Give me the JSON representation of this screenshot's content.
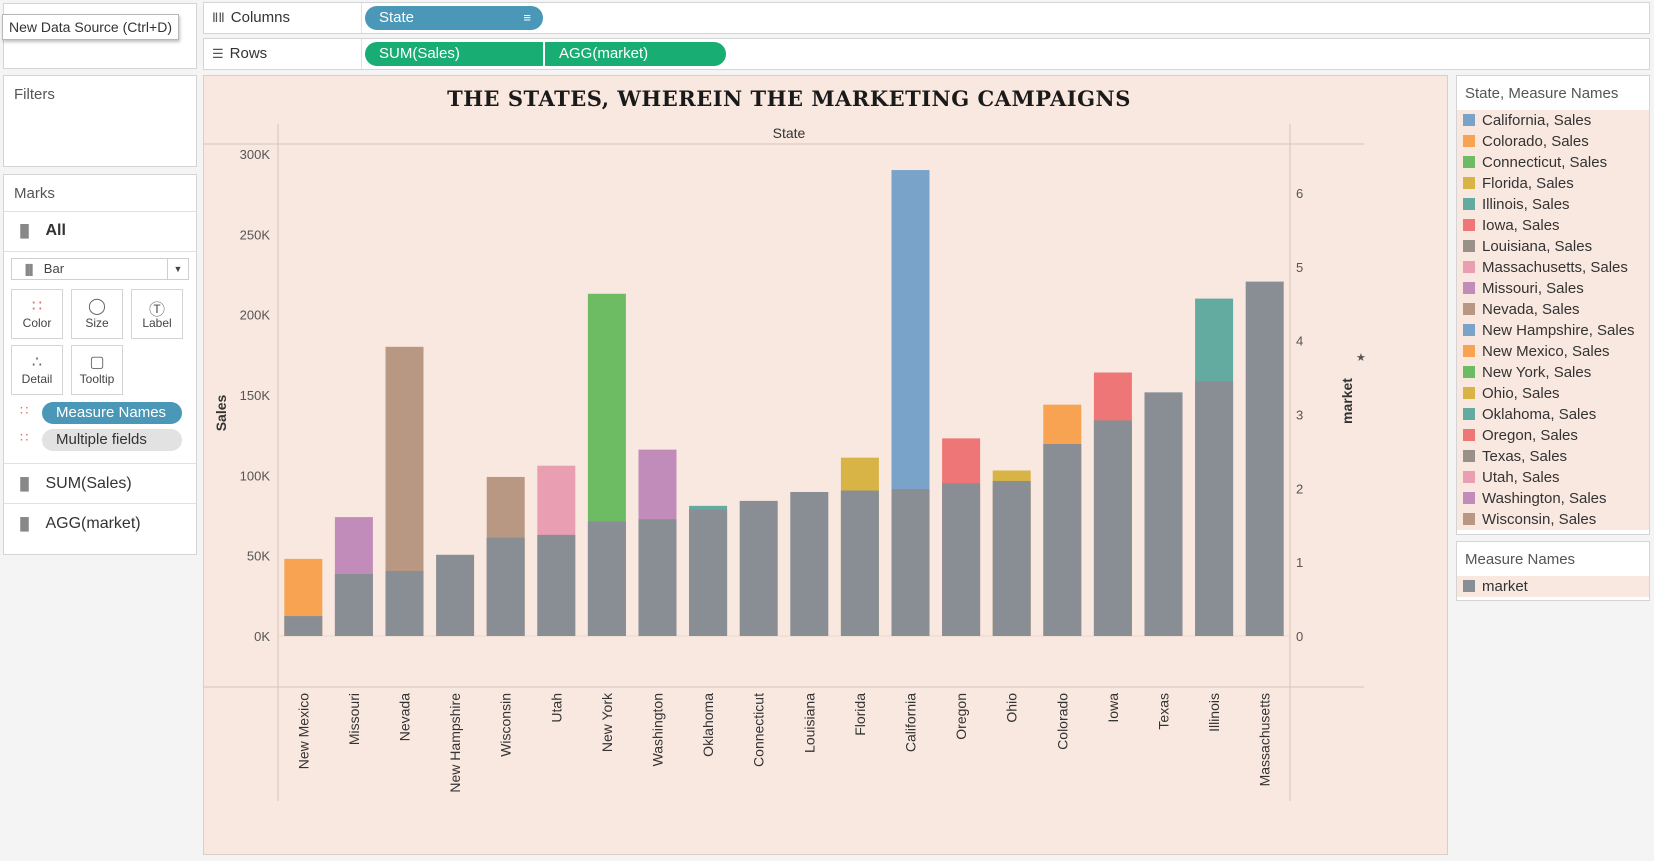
{
  "tooltip": "New Data Source (Ctrl+D)",
  "shelves": {
    "columns": {
      "label": "Columns",
      "pills": [
        "State"
      ]
    },
    "rows": {
      "label": "Rows",
      "pills": [
        "SUM(Sales)",
        "AGG(market)"
      ]
    }
  },
  "filters": {
    "title": "Filters"
  },
  "marks": {
    "title": "Marks",
    "all_label": "All",
    "mark_type": "Bar",
    "buttons": [
      "Color",
      "Size",
      "Label",
      "Detail",
      "Tooltip"
    ],
    "pills": [
      "Measure Names",
      "Multiple fields"
    ],
    "measures": [
      "SUM(Sales)",
      "AGG(market)"
    ]
  },
  "legend_state": {
    "title": "State, Measure Names",
    "items": [
      {
        "label": "California, Sales",
        "color": "#79a3c9"
      },
      {
        "label": "Colorado, Sales",
        "color": "#f7a351"
      },
      {
        "label": "Connecticut, Sales",
        "color": "#6dbb62"
      },
      {
        "label": "Florida, Sales",
        "color": "#d8b446"
      },
      {
        "label": "Illinois, Sales",
        "color": "#63aaa1"
      },
      {
        "label": "Iowa, Sales",
        "color": "#ef7676"
      },
      {
        "label": "Louisiana, Sales",
        "color": "#999089"
      },
      {
        "label": "Massachusetts, Sales",
        "color": "#e99eb2"
      },
      {
        "label": "Missouri, Sales",
        "color": "#c18bba"
      },
      {
        "label": "Nevada, Sales",
        "color": "#b89783"
      },
      {
        "label": "New Hampshire, Sales",
        "color": "#79a3c9"
      },
      {
        "label": "New Mexico, Sales",
        "color": "#f7a351"
      },
      {
        "label": "New York, Sales",
        "color": "#6dbb62"
      },
      {
        "label": "Ohio, Sales",
        "color": "#d8b446"
      },
      {
        "label": "Oklahoma, Sales",
        "color": "#63aaa1"
      },
      {
        "label": "Oregon, Sales",
        "color": "#ef7676"
      },
      {
        "label": "Texas, Sales",
        "color": "#999089"
      },
      {
        "label": "Utah, Sales",
        "color": "#e99eb2"
      },
      {
        "label": "Washington, Sales",
        "color": "#c18bba"
      },
      {
        "label": "Wisconsin, Sales",
        "color": "#b89783"
      }
    ]
  },
  "legend_measure": {
    "title": "Measure Names",
    "items": [
      {
        "label": "market",
        "color": "#888e94"
      }
    ]
  },
  "chart_data": {
    "type": "bar",
    "title": "THE STATES, WHEREIN THE MARKETING CAMPAIGNS",
    "header": "State",
    "ylabel": "Sales",
    "y2label": "market",
    "ylim": [
      0,
      300000
    ],
    "y2lim": [
      0,
      6
    ],
    "yticks": [
      "0K",
      "50K",
      "100K",
      "150K",
      "200K",
      "250K",
      "300K"
    ],
    "y2ticks": [
      "0",
      "1",
      "2",
      "3",
      "4",
      "5",
      "6"
    ],
    "categories": [
      "New Mexico",
      "Missouri",
      "Nevada",
      "New Hampshire",
      "Wisconsin",
      "Utah",
      "New York",
      "Washington",
      "Oklahoma",
      "Connecticut",
      "Louisiana",
      "Florida",
      "California",
      "Oregon",
      "Ohio",
      "Colorado",
      "Iowa",
      "Texas",
      "Illinois",
      "Massachusetts"
    ],
    "series": [
      {
        "name": "Sales",
        "values": [
          48000,
          74000,
          180000,
          0,
          99000,
          106000,
          213000,
          116000,
          81000,
          0,
          0,
          111000,
          290000,
          123000,
          103000,
          144000,
          164000,
          0,
          210000,
          0
        ],
        "colors": [
          "#f7a351",
          "#c18bba",
          "#b89783",
          "#79a3c9",
          "#b89783",
          "#e99eb2",
          "#6dbb62",
          "#c18bba",
          "#63aaa1",
          "#6dbb62",
          "#999089",
          "#d8b446",
          "#79a3c9",
          "#ef7676",
          "#d8b446",
          "#f7a351",
          "#ef7676",
          "#999089",
          "#63aaa1",
          "#e99eb2"
        ]
      },
      {
        "name": "market",
        "values": [
          0.27,
          0.84,
          0.88,
          1.1,
          1.33,
          1.37,
          1.55,
          1.58,
          1.71,
          1.83,
          1.95,
          1.97,
          1.99,
          2.07,
          2.1,
          2.6,
          2.92,
          3.3,
          3.45,
          4.8
        ],
        "color": "#888e94"
      }
    ]
  }
}
